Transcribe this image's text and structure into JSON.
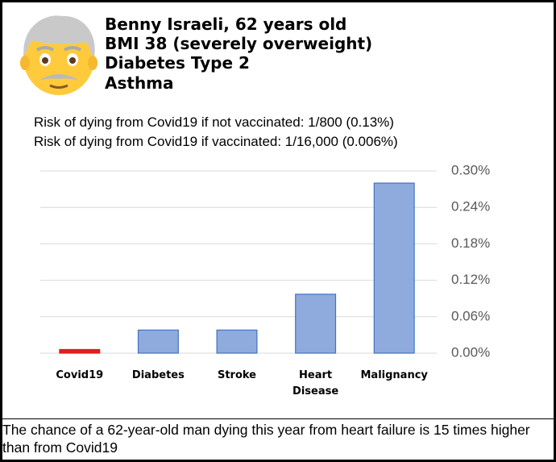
{
  "header": {
    "lines": [
      "Benny Israeli, 62 years old",
      "BMI 38 (severely overweight)",
      "Diabetes Type 2",
      "Asthma"
    ]
  },
  "risk_lines": [
    "Risk of dying from Covid19 if not vaccinated:  1/800 (0.13%)",
    "Risk of dying from Covid19 if vaccinated:  1/16,000 (0.006%)"
  ],
  "chart_data": {
    "type": "bar",
    "categories": [
      "Covid19",
      "Diabetes",
      "Stroke",
      "Heart Disease",
      "Malignancy"
    ],
    "values": [
      0.006,
      0.038,
      0.038,
      0.097,
      0.28
    ],
    "colors": [
      "#e31c1c",
      "#8faadc",
      "#8faadc",
      "#8faadc",
      "#8faadc"
    ],
    "ylim": [
      0,
      0.3
    ],
    "yticks": [
      {
        "value": 0,
        "label": "0.00%"
      },
      {
        "value": 0.06,
        "label": "0.06%"
      },
      {
        "value": 0.12,
        "label": "0.12%"
      },
      {
        "value": 0.18,
        "label": "0.18%"
      },
      {
        "value": 0.24,
        "label": "0.24%"
      },
      {
        "value": 0.3,
        "label": "0.30%"
      }
    ],
    "grid": true
  },
  "footer": {
    "text": "The chance of a 62-year-old man dying this year from heart failure is 15 times higher than from Covid19"
  }
}
